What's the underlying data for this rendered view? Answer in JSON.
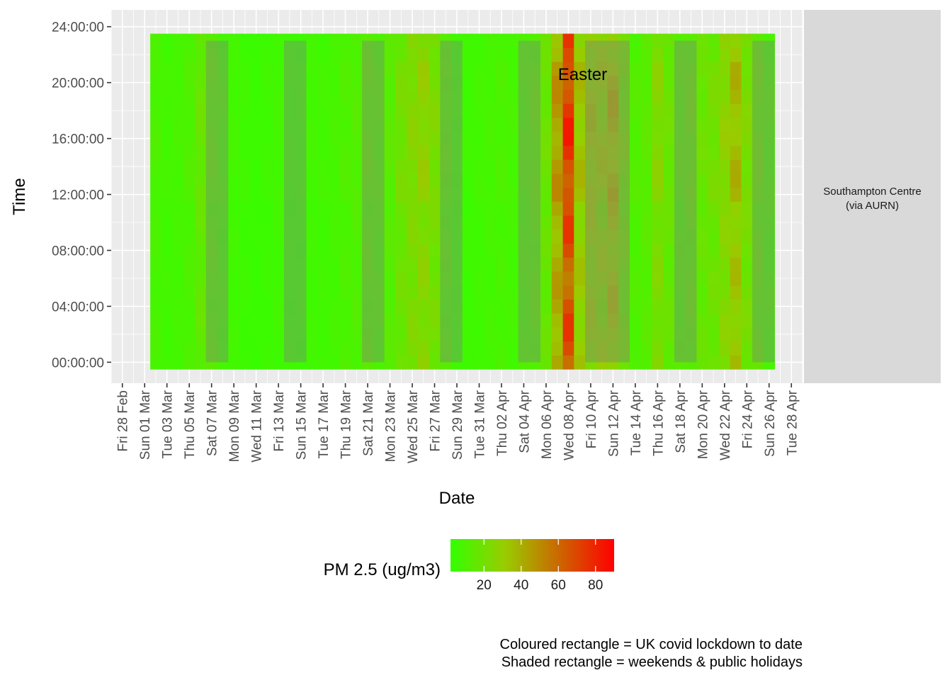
{
  "chart_data": {
    "type": "heatmap",
    "title": "",
    "xlabel": "Date",
    "ylabel": "Time",
    "x_range": [
      "2020-02-27",
      "2020-04-29"
    ],
    "data_x_range": [
      "2020-03-02",
      "2020-04-27"
    ],
    "x_tick_labels": [
      "Fri 28 Feb",
      "Sun 01 Mar",
      "Tue 03 Mar",
      "Thu 05 Mar",
      "Sat 07 Mar",
      "Mon 09 Mar",
      "Wed 11 Mar",
      "Fri 13 Mar",
      "Sun 15 Mar",
      "Tue 17 Mar",
      "Thu 19 Mar",
      "Sat 21 Mar",
      "Mon 23 Mar",
      "Wed 25 Mar",
      "Fri 27 Mar",
      "Sun 29 Mar",
      "Tue 31 Mar",
      "Thu 02 Apr",
      "Sat 04 Apr",
      "Mon 06 Apr",
      "Wed 08 Apr",
      "Fri 10 Apr",
      "Sun 12 Apr",
      "Tue 14 Apr",
      "Thu 16 Apr",
      "Sat 18 Apr",
      "Mon 20 Apr",
      "Wed 22 Apr",
      "Fri 24 Apr",
      "Sun 26 Apr",
      "Tue 28 Apr"
    ],
    "y_range_hours": [
      -1.5,
      25.2
    ],
    "y_tick_labels": [
      "00:00:00",
      "04:00:00",
      "08:00:00",
      "12:00:00",
      "16:00:00",
      "20:00:00",
      "24:00:00"
    ],
    "y_tick_hours": [
      0,
      4,
      8,
      12,
      16,
      20,
      24
    ],
    "grid": true,
    "panel_background": "#ebebeb",
    "facet_label": "Southampton Centre\n(via AURN)",
    "facet_background": "#d9d9d9",
    "legend": {
      "title": "PM 2.5 (ug/m3)",
      "position": "bottom",
      "ticks": [
        20,
        40,
        60,
        80
      ],
      "range": [
        2,
        90
      ],
      "colors": [
        "#33ff00",
        "#99cc00",
        "#cc6600",
        "#ff0000"
      ]
    },
    "annotation": {
      "text": "Easter",
      "date": "2020-04-08",
      "hour": 20.6
    },
    "shaded_ranges": [
      [
        "2020-03-07",
        "2020-03-08"
      ],
      [
        "2020-03-14",
        "2020-03-15"
      ],
      [
        "2020-03-21",
        "2020-03-22"
      ],
      [
        "2020-03-28",
        "2020-03-29"
      ],
      [
        "2020-04-04",
        "2020-04-05"
      ],
      [
        "2020-04-10",
        "2020-04-13"
      ],
      [
        "2020-04-18",
        "2020-04-19"
      ],
      [
        "2020-04-25",
        "2020-04-26"
      ]
    ],
    "shade_hours": [
      0,
      23
    ],
    "daily_pm25": [
      {
        "date": "2020-03-02",
        "value": 8
      },
      {
        "date": "2020-03-03",
        "value": 6
      },
      {
        "date": "2020-03-04",
        "value": 7
      },
      {
        "date": "2020-03-05",
        "value": 9
      },
      {
        "date": "2020-03-06",
        "value": 15
      },
      {
        "date": "2020-03-07",
        "value": 12
      },
      {
        "date": "2020-03-08",
        "value": 8
      },
      {
        "date": "2020-03-09",
        "value": 6
      },
      {
        "date": "2020-03-10",
        "value": 5
      },
      {
        "date": "2020-03-11",
        "value": 4
      },
      {
        "date": "2020-03-12",
        "value": 5
      },
      {
        "date": "2020-03-13",
        "value": 6
      },
      {
        "date": "2020-03-14",
        "value": 5
      },
      {
        "date": "2020-03-15",
        "value": 5
      },
      {
        "date": "2020-03-16",
        "value": 6
      },
      {
        "date": "2020-03-17",
        "value": 6
      },
      {
        "date": "2020-03-18",
        "value": 7
      },
      {
        "date": "2020-03-19",
        "value": 9
      },
      {
        "date": "2020-03-20",
        "value": 10
      },
      {
        "date": "2020-03-21",
        "value": 12
      },
      {
        "date": "2020-03-22",
        "value": 10
      },
      {
        "date": "2020-03-23",
        "value": 12
      },
      {
        "date": "2020-03-24",
        "value": 18
      },
      {
        "date": "2020-03-25",
        "value": 22
      },
      {
        "date": "2020-03-26",
        "value": 25
      },
      {
        "date": "2020-03-27",
        "value": 20
      },
      {
        "date": "2020-03-28",
        "value": 11
      },
      {
        "date": "2020-03-29",
        "value": 6
      },
      {
        "date": "2020-03-30",
        "value": 5
      },
      {
        "date": "2020-03-31",
        "value": 6
      },
      {
        "date": "2020-04-01",
        "value": 7
      },
      {
        "date": "2020-04-02",
        "value": 8
      },
      {
        "date": "2020-04-03",
        "value": 7
      },
      {
        "date": "2020-04-04",
        "value": 9
      },
      {
        "date": "2020-04-05",
        "value": 12
      },
      {
        "date": "2020-04-06",
        "value": 16
      },
      {
        "date": "2020-04-07",
        "value": 40
      },
      {
        "date": "2020-04-08",
        "value": 65
      },
      {
        "date": "2020-04-09",
        "value": 30
      },
      {
        "date": "2020-04-10",
        "value": 28
      },
      {
        "date": "2020-04-11",
        "value": 26
      },
      {
        "date": "2020-04-12",
        "value": 32
      },
      {
        "date": "2020-04-13",
        "value": 18
      },
      {
        "date": "2020-04-14",
        "value": 10
      },
      {
        "date": "2020-04-15",
        "value": 12
      },
      {
        "date": "2020-04-16",
        "value": 22
      },
      {
        "date": "2020-04-17",
        "value": 16
      },
      {
        "date": "2020-04-18",
        "value": 11
      },
      {
        "date": "2020-04-19",
        "value": 14
      },
      {
        "date": "2020-04-20",
        "value": 16
      },
      {
        "date": "2020-04-21",
        "value": 18
      },
      {
        "date": "2020-04-22",
        "value": 24
      },
      {
        "date": "2020-04-23",
        "value": 32
      },
      {
        "date": "2020-04-24",
        "value": 20
      },
      {
        "date": "2020-04-25",
        "value": 14
      },
      {
        "date": "2020-04-26",
        "value": 9
      }
    ]
  },
  "caption": {
    "line1": "Coloured rectangle = UK covid lockdown to date",
    "line2": "Shaded rectangle = weekends & public holidays"
  }
}
